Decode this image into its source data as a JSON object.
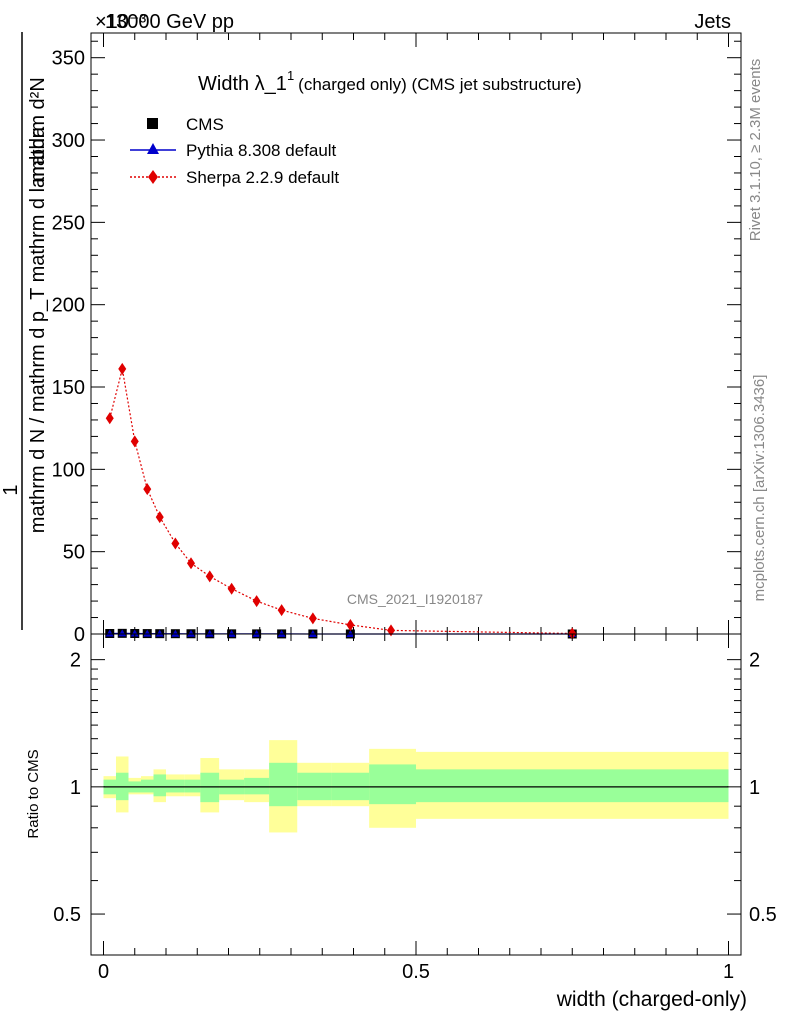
{
  "header": {
    "energy_label": "13000 GeV pp",
    "process_label": "Jets",
    "exponent_label": "×10⁻³"
  },
  "side_labels": {
    "rivet": "Rivet 3.1.10, ≥ 2.3M events",
    "mcplots": "mcplots.cern.ch [arXiv:1306.3436]"
  },
  "watermark": "CMS_2021_I1920187",
  "chart_data": [
    {
      "type": "scatter",
      "title_main": "Width λ_1",
      "title_sup": "1",
      "title_tail": "(charged only) (CMS jet substructure)",
      "ylabel_numerator": "1",
      "ylabel_denominator": "mathrm d N / mathrm d p_T mathrm d lambda",
      "ylabel_numerator2": "mathrm d²N",
      "ylabel_denominator2": "mathrm d p_T mathrm d lambda",
      "ylabel_numerator_top": "mathrm d²N",
      "ylim": [
        0,
        365
      ],
      "xlim": [
        -0.02,
        1.02
      ],
      "yticks": [
        0,
        50,
        100,
        150,
        200,
        250,
        300,
        350
      ],
      "ytick_labels": [
        "0",
        "50",
        "100",
        "150",
        "200",
        "250",
        "300",
        "350"
      ],
      "legend": [
        {
          "name": "CMS",
          "color": "#000000",
          "marker": "square"
        },
        {
          "name": "Pythia 8.308 default",
          "color": "#0000cc",
          "marker": "triangle"
        },
        {
          "name": "Sherpa 2.2.9 default",
          "color": "#e00000",
          "marker": "diamond"
        }
      ],
      "legend_placement": "top-left",
      "series": [
        {
          "name": "CMS",
          "x": [
            0.01,
            0.03,
            0.05,
            0.07,
            0.09,
            0.115,
            0.14,
            0.17,
            0.205,
            0.245,
            0.285,
            0.335,
            0.395,
            0.75
          ],
          "values": [
            0.3,
            0.4,
            0.3,
            0.25,
            0.2,
            0.18,
            0.15,
            0.12,
            0.1,
            0.07,
            0.05,
            0.03,
            0.02,
            0.0
          ]
        },
        {
          "name": "Pythia 8.308 default",
          "x": [
            0.01,
            0.03,
            0.05,
            0.07,
            0.09,
            0.115,
            0.14,
            0.17,
            0.205,
            0.245,
            0.285,
            0.335,
            0.395,
            0.75
          ],
          "values": [
            0.3,
            0.4,
            0.3,
            0.25,
            0.2,
            0.18,
            0.15,
            0.12,
            0.1,
            0.07,
            0.05,
            0.03,
            0.02,
            0.0
          ]
        },
        {
          "name": "Sherpa 2.2.9 default",
          "x": [
            0.01,
            0.03,
            0.05,
            0.07,
            0.09,
            0.115,
            0.14,
            0.17,
            0.205,
            0.245,
            0.285,
            0.335,
            0.395,
            0.46,
            0.75
          ],
          "values": [
            131,
            161,
            117,
            88,
            71,
            55,
            43,
            35,
            27.5,
            20,
            14.5,
            9.5,
            5.5,
            2.2,
            0.3
          ]
        }
      ]
    },
    {
      "type": "area",
      "ylabel": "Ratio to CMS",
      "xlabel": "width (charged-only)",
      "ylim": [
        0.4,
        2.3
      ],
      "yscale": "log",
      "yticks": [
        0.5,
        1,
        2
      ],
      "ytick_labels": [
        "0.5",
        "1",
        "2"
      ],
      "xticks": [
        0,
        0.5,
        1
      ],
      "xtick_labels": [
        "0",
        "0.5",
        "1"
      ],
      "bins": [
        {
          "x0": 0.0,
          "x1": 0.02,
          "inner": [
            0.96,
            1.04
          ],
          "outer": [
            0.94,
            1.06
          ]
        },
        {
          "x0": 0.02,
          "x1": 0.04,
          "inner": [
            0.93,
            1.08
          ],
          "outer": [
            0.87,
            1.18
          ]
        },
        {
          "x0": 0.04,
          "x1": 0.06,
          "inner": [
            0.97,
            1.03
          ],
          "outer": [
            0.96,
            1.05
          ]
        },
        {
          "x0": 0.06,
          "x1": 0.08,
          "inner": [
            0.97,
            1.04
          ],
          "outer": [
            0.96,
            1.06
          ]
        },
        {
          "x0": 0.08,
          "x1": 0.1,
          "inner": [
            0.95,
            1.07
          ],
          "outer": [
            0.92,
            1.1
          ]
        },
        {
          "x0": 0.1,
          "x1": 0.13,
          "inner": [
            0.97,
            1.04
          ],
          "outer": [
            0.95,
            1.07
          ]
        },
        {
          "x0": 0.13,
          "x1": 0.155,
          "inner": [
            0.97,
            1.04
          ],
          "outer": [
            0.95,
            1.07
          ]
        },
        {
          "x0": 0.155,
          "x1": 0.185,
          "inner": [
            0.92,
            1.08
          ],
          "outer": [
            0.87,
            1.17
          ]
        },
        {
          "x0": 0.185,
          "x1": 0.225,
          "inner": [
            0.96,
            1.04
          ],
          "outer": [
            0.93,
            1.1
          ]
        },
        {
          "x0": 0.225,
          "x1": 0.265,
          "inner": [
            0.96,
            1.05
          ],
          "outer": [
            0.92,
            1.1
          ]
        },
        {
          "x0": 0.265,
          "x1": 0.31,
          "inner": [
            0.9,
            1.14
          ],
          "outer": [
            0.78,
            1.29
          ]
        },
        {
          "x0": 0.31,
          "x1": 0.365,
          "inner": [
            0.93,
            1.08
          ],
          "outer": [
            0.9,
            1.14
          ]
        },
        {
          "x0": 0.365,
          "x1": 0.425,
          "inner": [
            0.93,
            1.08
          ],
          "outer": [
            0.9,
            1.14
          ]
        },
        {
          "x0": 0.425,
          "x1": 0.5,
          "inner": [
            0.91,
            1.13
          ],
          "outer": [
            0.8,
            1.23
          ]
        },
        {
          "x0": 0.5,
          "x1": 1.0,
          "inner": [
            0.92,
            1.1
          ],
          "outer": [
            0.84,
            1.21
          ]
        }
      ],
      "band_colors": {
        "inner": "#99ff99",
        "outer": "#ffff99"
      },
      "reference_line": 1
    }
  ]
}
